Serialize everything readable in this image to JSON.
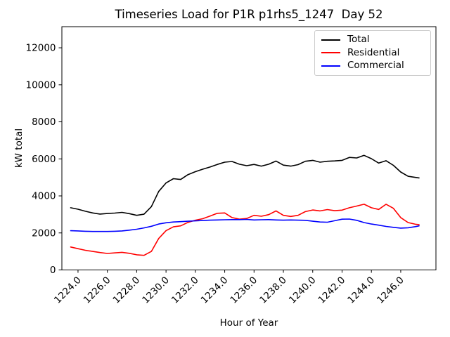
{
  "title": "Timeseries Load for P1R p1rhs5_1247  Day 52",
  "chart_data": {
    "type": "line",
    "title": "Timeseries Load for P1R p1rhs5_1247  Day 52",
    "xlabel": "Hour of Year",
    "ylabel": "kW total",
    "xlim": [
      1222.9,
      1248.4
    ],
    "ylim": [
      0,
      13140
    ],
    "grid": false,
    "background": "#ffffff",
    "xticks": [
      1224,
      1226,
      1228,
      1230,
      1232,
      1234,
      1236,
      1238,
      1240,
      1242,
      1244,
      1246
    ],
    "xtick_labels": [
      "1224.0",
      "1226.0",
      "1228.0",
      "1230.0",
      "1232.0",
      "1234.0",
      "1236.0",
      "1238.0",
      "1240.0",
      "1242.0",
      "1244.0",
      "1246.0"
    ],
    "yticks": [
      0,
      2000,
      4000,
      6000,
      8000,
      10000,
      12000
    ],
    "ytick_labels": [
      "0",
      "2000",
      "4000",
      "6000",
      "8000",
      "10000",
      "12000"
    ],
    "legend": {
      "position": "upper right"
    },
    "x": [
      1223.5,
      1224.0,
      1224.5,
      1225.0,
      1225.5,
      1226.0,
      1226.5,
      1227.0,
      1227.5,
      1228.0,
      1228.5,
      1229.0,
      1229.5,
      1230.0,
      1230.5,
      1231.0,
      1231.5,
      1232.0,
      1232.5,
      1233.0,
      1233.5,
      1234.0,
      1234.5,
      1235.0,
      1235.5,
      1236.0,
      1236.5,
      1237.0,
      1237.5,
      1238.0,
      1238.5,
      1239.0,
      1239.5,
      1240.0,
      1240.5,
      1241.0,
      1241.5,
      1242.0,
      1242.5,
      1243.0,
      1243.5,
      1244.0,
      1244.5,
      1245.0,
      1245.5,
      1246.0,
      1246.5,
      1247.0,
      1247.25
    ],
    "series": [
      {
        "name": "Total",
        "color": "#000000",
        "values": [
          3360,
          3280,
          3170,
          3080,
          3020,
          3050,
          3070,
          3110,
          3040,
          2950,
          3010,
          3420,
          4240,
          4700,
          4930,
          4890,
          5150,
          5310,
          5440,
          5560,
          5700,
          5820,
          5860,
          5710,
          5630,
          5700,
          5610,
          5710,
          5880,
          5660,
          5610,
          5690,
          5870,
          5920,
          5820,
          5870,
          5890,
          5920,
          6080,
          6050,
          6190,
          6010,
          5770,
          5900,
          5650,
          5290,
          5060,
          5000,
          4970
        ]
      },
      {
        "name": "Residential",
        "color": "#ff0000",
        "values": [
          1240,
          1150,
          1060,
          1000,
          940,
          890,
          920,
          950,
          900,
          820,
          790,
          1000,
          1700,
          2120,
          2330,
          2380,
          2570,
          2690,
          2770,
          2910,
          3060,
          3080,
          2830,
          2740,
          2780,
          2950,
          2900,
          2990,
          3190,
          2950,
          2890,
          2950,
          3150,
          3240,
          3190,
          3260,
          3200,
          3230,
          3360,
          3450,
          3550,
          3360,
          3270,
          3550,
          3330,
          2830,
          2560,
          2470,
          2450
        ]
      },
      {
        "name": "Commercial",
        "color": "#0000ff",
        "values": [
          2120,
          2110,
          2090,
          2080,
          2080,
          2080,
          2090,
          2110,
          2150,
          2200,
          2270,
          2360,
          2480,
          2550,
          2590,
          2610,
          2630,
          2650,
          2670,
          2690,
          2700,
          2710,
          2720,
          2720,
          2730,
          2700,
          2710,
          2720,
          2700,
          2690,
          2700,
          2690,
          2680,
          2630,
          2590,
          2580,
          2660,
          2740,
          2750,
          2680,
          2560,
          2480,
          2420,
          2350,
          2300,
          2260,
          2280,
          2340,
          2380
        ]
      }
    ]
  }
}
